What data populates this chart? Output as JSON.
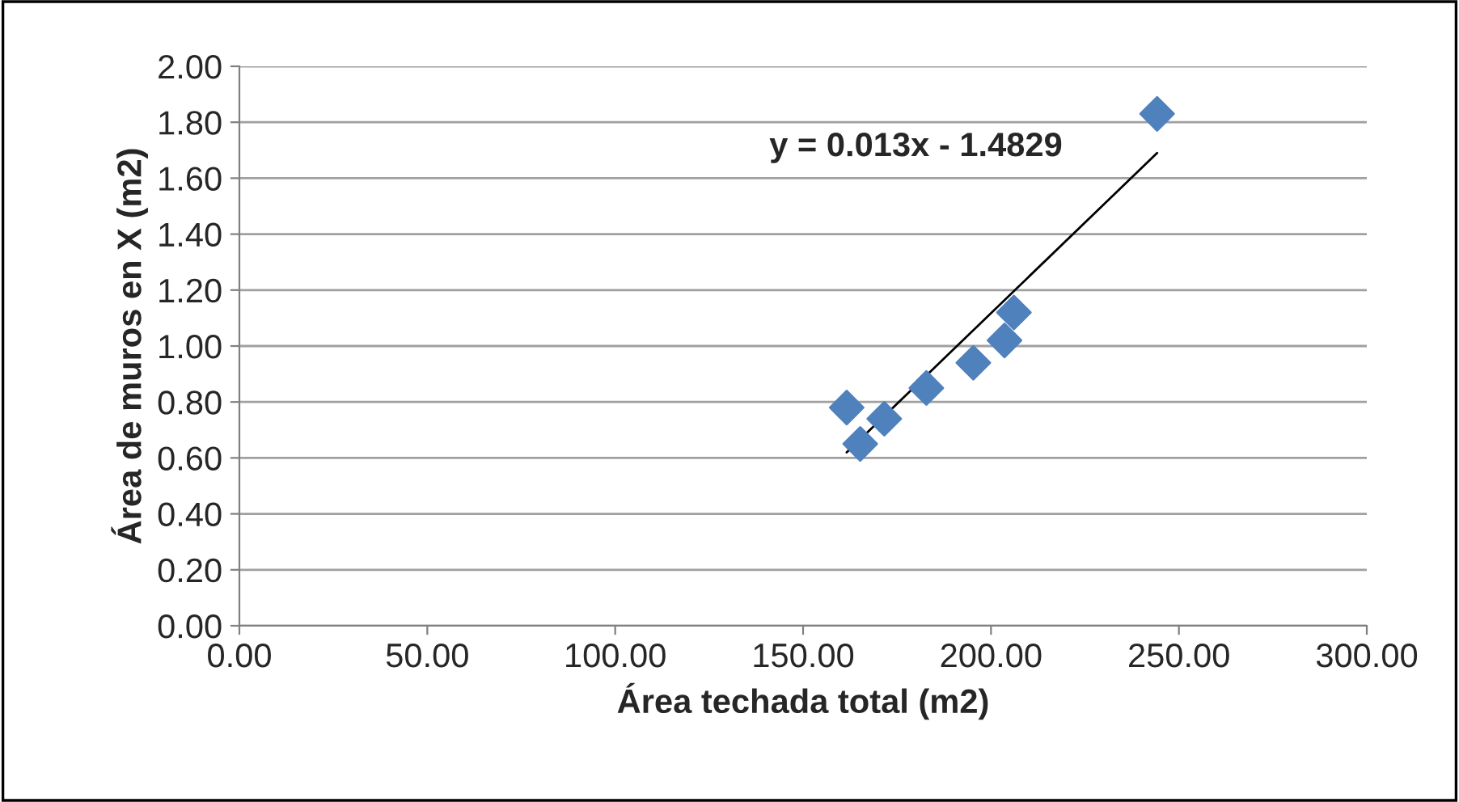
{
  "chart_data": {
    "type": "scatter",
    "xlabel": "Área techada total (m2)",
    "ylabel": "Área de muros en X (m2)",
    "x": [
      161.6,
      165.2,
      171.6,
      182.8,
      195.3,
      203.6,
      206.1,
      244.2
    ],
    "series": [
      {
        "color": "#4f81bd",
        "marker": "diamond",
        "values": [
          0.78,
          0.65,
          0.74,
          0.85,
          0.94,
          1.02,
          1.12,
          1.83
        ]
      },
      {
        "type": "line",
        "color": "#000000",
        "marker": "none",
        "x": [
          161.6,
          244.2
        ],
        "values": [
          0.62,
          1.69
        ]
      }
    ],
    "annotations": [
      "y = 0.013x - 1.4829"
    ],
    "xlim": [
      0,
      300
    ],
    "xticks": [
      {
        "value": 0,
        "label": "0.00"
      },
      {
        "value": 50,
        "label": "50.00"
      },
      {
        "value": 100,
        "label": "100.00"
      },
      {
        "value": 150,
        "label": "150.00"
      },
      {
        "value": 200,
        "label": "200.00"
      },
      {
        "value": 250,
        "label": "250.00"
      },
      {
        "value": 300,
        "label": "300.00"
      }
    ],
    "ylim": [
      0,
      2
    ],
    "yticks": [
      {
        "value": 0,
        "label": "0.00"
      },
      {
        "value": 0.2,
        "label": "0.20"
      },
      {
        "value": 0.4,
        "label": "0.40"
      },
      {
        "value": 0.6,
        "label": "0.60"
      },
      {
        "value": 0.8,
        "label": "0.80"
      },
      {
        "value": 1.0,
        "label": "1.00"
      },
      {
        "value": 1.2,
        "label": "1.20"
      },
      {
        "value": 1.4,
        "label": "1.40"
      },
      {
        "value": 1.6,
        "label": "1.60"
      },
      {
        "value": 1.8,
        "label": "1.80"
      },
      {
        "value": 2.0,
        "label": "2.00"
      }
    ],
    "grid": "y",
    "legend": false
  }
}
